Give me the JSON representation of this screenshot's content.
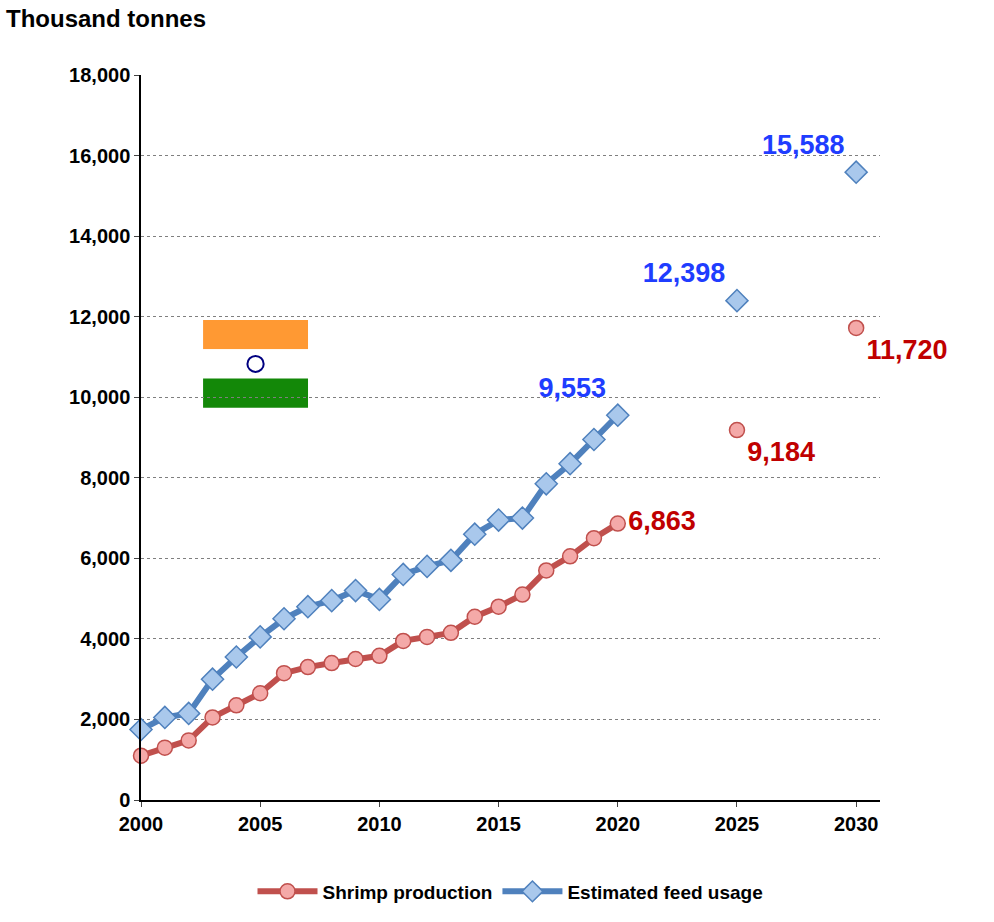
{
  "chart_data": {
    "type": "line",
    "y_label": "Thousand tonnes",
    "x": [
      2000,
      2001,
      2002,
      2003,
      2004,
      2005,
      2006,
      2007,
      2008,
      2009,
      2010,
      2011,
      2012,
      2013,
      2014,
      2015,
      2016,
      2017,
      2018,
      2019,
      2020,
      2025,
      2030
    ],
    "xlim": [
      2000,
      2031
    ],
    "xticks": [
      2000,
      2005,
      2010,
      2015,
      2020,
      2025,
      2030
    ],
    "ylim": [
      0,
      18000
    ],
    "yticks": [
      0,
      {
        "value": 2000,
        "label": "2,000"
      },
      {
        "value": 4000,
        "label": "4,000"
      },
      {
        "value": 6000,
        "label": "6,000"
      },
      {
        "value": 8000,
        "label": "8,000"
      },
      {
        "value": 10000,
        "label": "10,000"
      },
      {
        "value": 12000,
        "label": "12,000"
      },
      {
        "value": 14000,
        "label": "14,000"
      },
      {
        "value": 16000,
        "label": "16,000"
      },
      {
        "value": 18000,
        "label": "18,000"
      }
    ],
    "grid": true,
    "legend": "bottom",
    "series": [
      {
        "name": "Shrimp production",
        "type": "line",
        "color": "#c0504d",
        "marker": "circle",
        "line_style": "solid",
        "values": [
          1100,
          1300,
          1480,
          2050,
          2350,
          2650,
          3150,
          3300,
          3400,
          3500,
          3580,
          3950,
          4050,
          4150,
          4550,
          4800,
          5100,
          5700,
          6050,
          6500,
          6863,
          null,
          null
        ],
        "value_labels": [
          null,
          null,
          null,
          null,
          null,
          null,
          null,
          null,
          null,
          null,
          null,
          null,
          null,
          null,
          null,
          null,
          null,
          null,
          null,
          null,
          "6,863",
          null,
          null
        ]
      },
      {
        "name": "Estimated feed usage",
        "type": "line",
        "color": "#4f81bd",
        "marker": "diamond",
        "line_style": "solid",
        "values": [
          1750,
          2050,
          2150,
          3000,
          3550,
          4050,
          4500,
          4800,
          4950,
          5200,
          4980,
          5600,
          5800,
          5950,
          6600,
          6950,
          7000,
          7850,
          8350,
          8950,
          9553,
          null,
          null
        ],
        "value_labels": [
          null,
          null,
          null,
          null,
          null,
          null,
          null,
          null,
          null,
          null,
          null,
          null,
          null,
          null,
          null,
          null,
          null,
          null,
          null,
          null,
          "9,553",
          null,
          null
        ]
      },
      {
        "name": "Shrimp production",
        "type": "scatter",
        "color": "#c0504d",
        "marker": "circle",
        "values": [
          null,
          null,
          null,
          null,
          null,
          null,
          null,
          null,
          null,
          null,
          null,
          null,
          null,
          null,
          null,
          null,
          null,
          null,
          null,
          null,
          null,
          9184,
          11720
        ],
        "value_labels": [
          null,
          null,
          null,
          null,
          null,
          null,
          null,
          null,
          null,
          null,
          null,
          null,
          null,
          null,
          null,
          null,
          null,
          null,
          null,
          null,
          null,
          "9,184",
          "11,720"
        ]
      },
      {
        "name": "Estimated feed usage",
        "type": "scatter",
        "color": "#4f81bd",
        "marker": "diamond",
        "values": [
          null,
          null,
          null,
          null,
          null,
          null,
          null,
          null,
          null,
          null,
          null,
          null,
          null,
          null,
          null,
          null,
          null,
          null,
          null,
          null,
          null,
          12398,
          15588
        ],
        "value_labels": [
          null,
          null,
          null,
          null,
          null,
          null,
          null,
          null,
          null,
          null,
          null,
          null,
          null,
          null,
          null,
          null,
          null,
          null,
          null,
          null,
          null,
          "12,398",
          "15,588"
        ]
      }
    ]
  }
}
